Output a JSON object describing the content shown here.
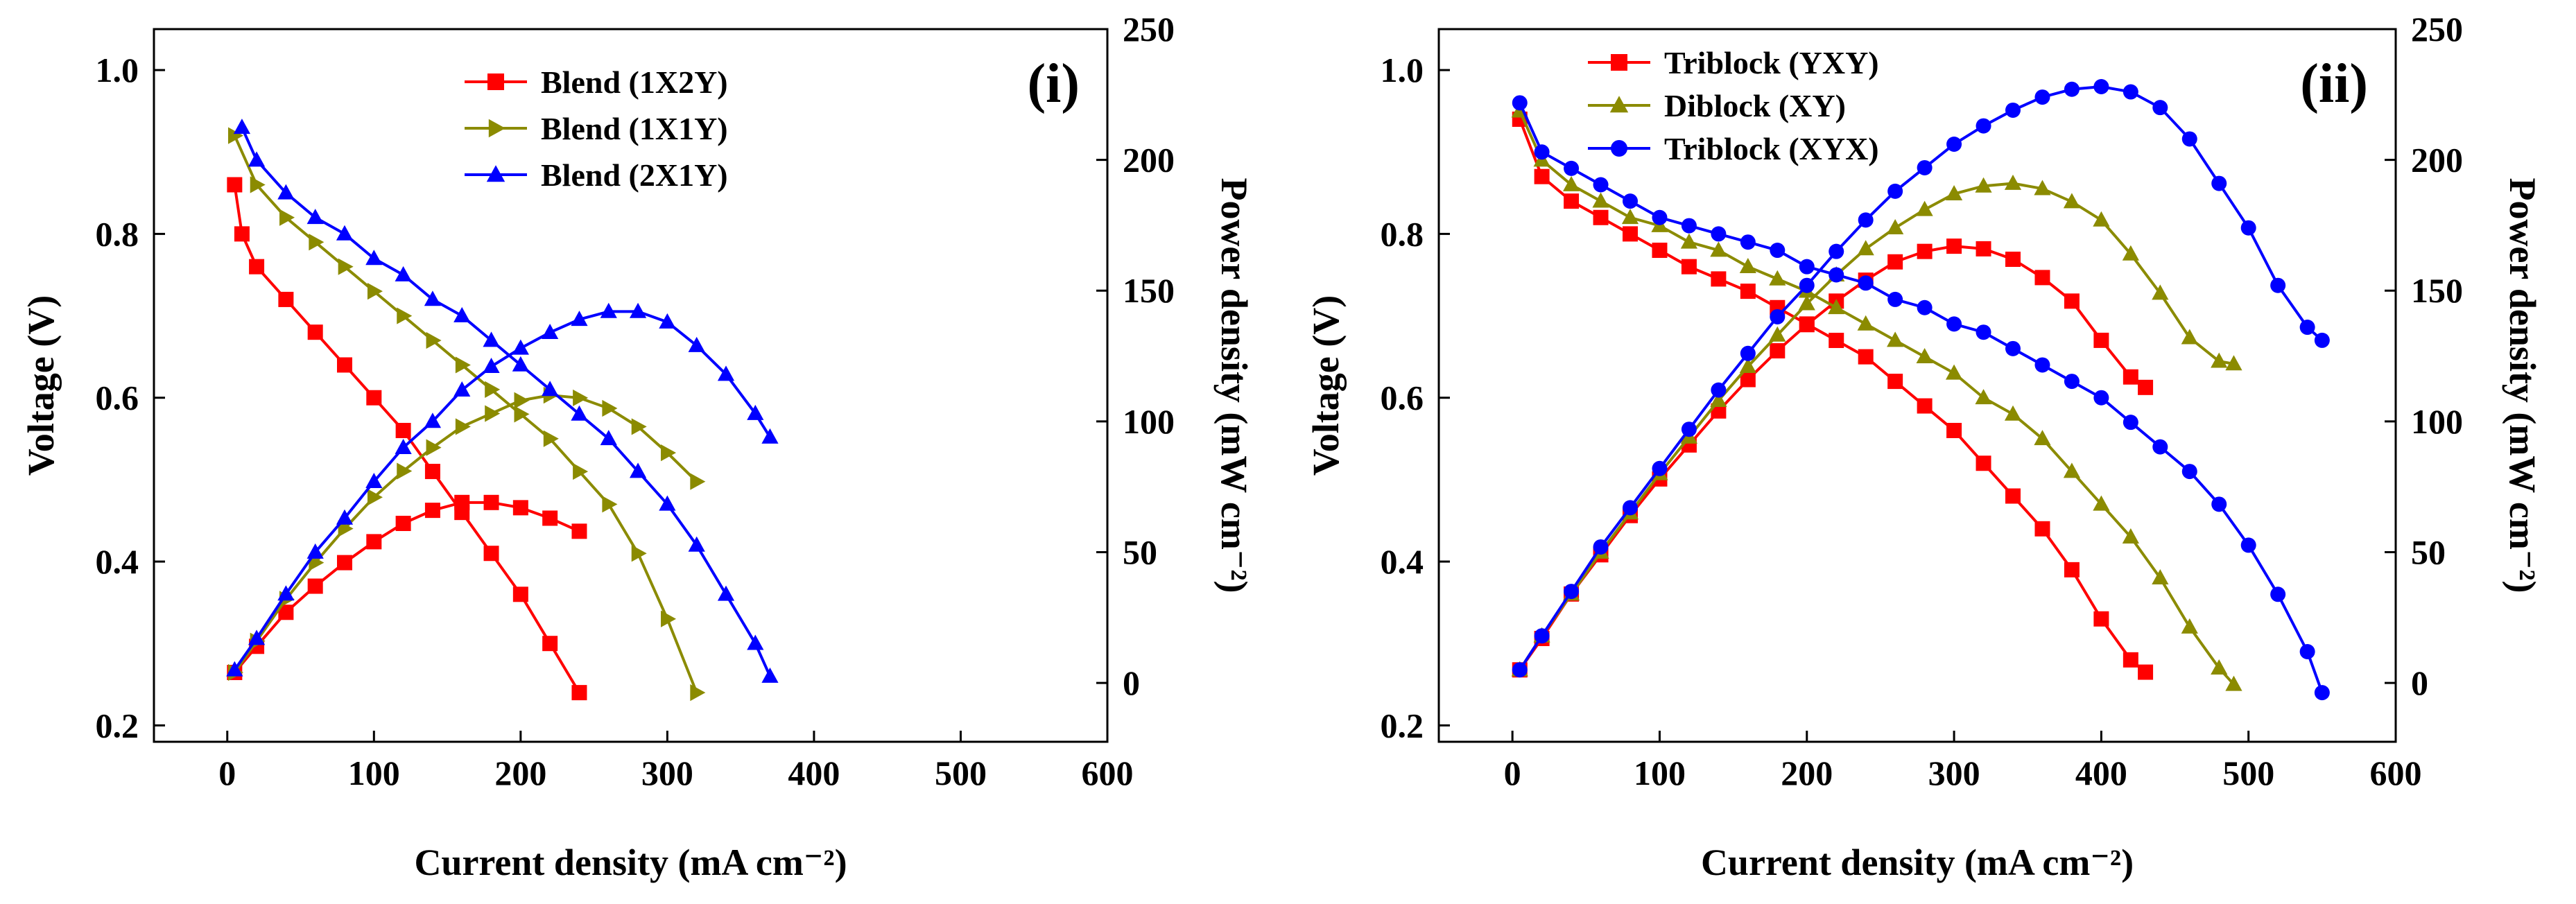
{
  "chart_data": [
    {
      "type": "line",
      "panel": "left",
      "panel_label": "(i)",
      "xlabel": "Current density (mA cm⁻²)",
      "ylabel_left": "Voltage (V)",
      "ylabel_right": "Power density (mW cm⁻²)",
      "xlim": [
        -50,
        600
      ],
      "ylim_left": [
        0.18,
        1.05
      ],
      "ylim_right": [
        -22.5,
        250
      ],
      "xticks": [
        0,
        100,
        200,
        300,
        400,
        500,
        600
      ],
      "yticks_left": [
        0.2,
        0.4,
        0.6,
        0.8,
        1.0
      ],
      "yticks_right": [
        0,
        50,
        100,
        150,
        200,
        250
      ],
      "xtick_labels": [
        "0",
        "100",
        "200",
        "300",
        "400",
        "500",
        "600"
      ],
      "ytick_labels_left": [
        "0.2",
        "0.4",
        "0.6",
        "0.8",
        "1.0"
      ],
      "ytick_labels_right": [
        "0",
        "50",
        "100",
        "150",
        "200",
        "250"
      ],
      "legend_placement": "top-center",
      "series": [
        {
          "name": "Blend (1X2Y)",
          "color": "#ff0000",
          "marker": "square",
          "voltage": {
            "x": [
              5,
              10,
              20,
              40,
              60,
              80,
              100,
              120,
              140,
              160,
              180,
              200,
              220,
              240
            ],
            "y": [
              0.86,
              0.8,
              0.76,
              0.72,
              0.68,
              0.64,
              0.6,
              0.56,
              0.51,
              0.46,
              0.41,
              0.36,
              0.3,
              0.24
            ]
          },
          "power": {
            "x": [
              5,
              20,
              40,
              60,
              80,
              100,
              120,
              140,
              160,
              180,
              200,
              220,
              240
            ],
            "y": [
              4,
              14,
              27,
              37,
              46,
              54,
              61,
              66,
              69,
              69,
              67,
              63,
              58
            ]
          }
        },
        {
          "name": "Blend (1X1Y)",
          "color": "#8b8b00",
          "marker": "triangle-right",
          "voltage": {
            "x": [
              5,
              20,
              40,
              60,
              80,
              100,
              120,
              140,
              160,
              180,
              200,
              220,
              240,
              260,
              280,
              300,
              320
            ],
            "y": [
              0.92,
              0.86,
              0.82,
              0.79,
              0.76,
              0.73,
              0.7,
              0.67,
              0.64,
              0.61,
              0.58,
              0.55,
              0.51,
              0.47,
              0.41,
              0.33,
              0.24
            ]
          },
          "power": {
            "x": [
              5,
              20,
              40,
              60,
              80,
              100,
              120,
              140,
              160,
              180,
              200,
              220,
              240,
              260,
              280,
              300,
              320
            ],
            "y": [
              4,
              16,
              32,
              46,
              59,
              71,
              81,
              90,
              98,
              103,
              108,
              110,
              109,
              105,
              98,
              88,
              77
            ]
          }
        },
        {
          "name": "Blend (2X1Y)",
          "color": "#0000ff",
          "marker": "triangle-up",
          "voltage": {
            "x": [
              10,
              20,
              40,
              60,
              80,
              100,
              120,
              140,
              160,
              180,
              200,
              220,
              240,
              260,
              280,
              300,
              320,
              340,
              360,
              370
            ],
            "y": [
              0.93,
              0.89,
              0.85,
              0.82,
              0.8,
              0.77,
              0.75,
              0.72,
              0.7,
              0.67,
              0.64,
              0.61,
              0.58,
              0.55,
              0.51,
              0.47,
              0.42,
              0.36,
              0.3,
              0.26
            ]
          },
          "power": {
            "x": [
              5,
              20,
              40,
              60,
              80,
              100,
              120,
              140,
              160,
              180,
              200,
              220,
              240,
              260,
              280,
              300,
              320,
              340,
              360,
              370
            ],
            "y": [
              5,
              17,
              34,
              50,
              63,
              77,
              90,
              100,
              112,
              121,
              128,
              134,
              139,
              142,
              142,
              138,
              129,
              118,
              103,
              94
            ]
          }
        }
      ]
    },
    {
      "type": "line",
      "panel": "right",
      "panel_label": "(ii)",
      "xlabel": "Current density (mA cm⁻²)",
      "ylabel_left": "Voltage (V)",
      "ylabel_right": "Power density (mW cm⁻²)",
      "xlim": [
        -50,
        600
      ],
      "ylim_left": [
        0.18,
        1.05
      ],
      "ylim_right": [
        -22.5,
        250
      ],
      "xticks": [
        0,
        100,
        200,
        300,
        400,
        500,
        600
      ],
      "yticks_left": [
        0.2,
        0.4,
        0.6,
        0.8,
        1.0
      ],
      "yticks_right": [
        0,
        50,
        100,
        150,
        200,
        250
      ],
      "xtick_labels": [
        "0",
        "100",
        "200",
        "300",
        "400",
        "500",
        "600"
      ],
      "ytick_labels_left": [
        "0.2",
        "0.4",
        "0.6",
        "0.8",
        "1.0"
      ],
      "ytick_labels_right": [
        "0",
        "50",
        "100",
        "150",
        "200",
        "250"
      ],
      "legend_placement": "top-left",
      "series": [
        {
          "name": "Triblock (YXY)",
          "color": "#ff0000",
          "marker": "square",
          "voltage": {
            "x": [
              5,
              20,
              40,
              60,
              80,
              100,
              120,
              140,
              160,
              180,
              200,
              220,
              240,
              260,
              280,
              300,
              320,
              340,
              360,
              380,
              400,
              420,
              430
            ],
            "y": [
              0.94,
              0.87,
              0.84,
              0.82,
              0.8,
              0.78,
              0.76,
              0.745,
              0.73,
              0.71,
              0.69,
              0.67,
              0.65,
              0.62,
              0.59,
              0.56,
              0.52,
              0.48,
              0.44,
              0.39,
              0.33,
              0.28,
              0.265
            ]
          },
          "power": {
            "x": [
              5,
              20,
              40,
              60,
              80,
              100,
              120,
              140,
              160,
              180,
              200,
              220,
              240,
              260,
              280,
              300,
              320,
              340,
              360,
              380,
              400,
              420,
              430
            ],
            "y": [
              5,
              17,
              34,
              49,
              64,
              78,
              91,
              104,
              116,
              127,
              137,
              146,
              154,
              161,
              165,
              167,
              166,
              162,
              155,
              146,
              131,
              117,
              113
            ]
          }
        },
        {
          "name": "Diblock (XY)",
          "color": "#8b8b00",
          "marker": "triangle-up",
          "voltage": {
            "x": [
              5,
              20,
              40,
              60,
              80,
              100,
              120,
              140,
              160,
              180,
              200,
              220,
              240,
              260,
              280,
              300,
              320,
              340,
              360,
              380,
              400,
              420,
              440,
              460,
              480,
              490
            ],
            "y": [
              0.95,
              0.89,
              0.86,
              0.84,
              0.82,
              0.81,
              0.79,
              0.78,
              0.76,
              0.745,
              0.73,
              0.71,
              0.69,
              0.67,
              0.65,
              0.63,
              0.6,
              0.58,
              0.55,
              0.51,
              0.47,
              0.43,
              0.38,
              0.32,
              0.27,
              0.25
            ]
          },
          "power": {
            "x": [
              5,
              20,
              40,
              60,
              80,
              100,
              120,
              140,
              160,
              180,
              200,
              220,
              240,
              260,
              280,
              300,
              320,
              340,
              360,
              380,
              400,
              420,
              440,
              460,
              480,
              490
            ],
            "y": [
              5,
              18,
              34,
              50,
              65,
              80,
              94,
              108,
              121,
              133,
              145,
              156,
              166,
              174,
              181,
              187,
              190,
              191,
              189,
              184,
              177,
              164,
              149,
              132,
              123,
              122
            ]
          }
        },
        {
          "name": "Triblock (XYX)",
          "color": "#0000ff",
          "marker": "circle",
          "voltage": {
            "x": [
              5,
              20,
              40,
              60,
              80,
              100,
              120,
              140,
              160,
              180,
              200,
              220,
              240,
              260,
              280,
              300,
              320,
              340,
              360,
              380,
              400,
              420,
              440,
              460,
              480,
              500,
              520,
              540,
              550
            ],
            "y": [
              0.96,
              0.9,
              0.88,
              0.86,
              0.84,
              0.82,
              0.81,
              0.8,
              0.79,
              0.78,
              0.76,
              0.75,
              0.74,
              0.72,
              0.71,
              0.69,
              0.68,
              0.66,
              0.64,
              0.62,
              0.6,
              0.57,
              0.54,
              0.51,
              0.47,
              0.42,
              0.36,
              0.29,
              0.24
            ]
          },
          "power": {
            "x": [
              5,
              20,
              40,
              60,
              80,
              100,
              120,
              140,
              160,
              180,
              200,
              220,
              240,
              260,
              280,
              300,
              320,
              340,
              360,
              380,
              400,
              420,
              440,
              460,
              480,
              500,
              520,
              540,
              550
            ],
            "y": [
              5,
              18,
              35,
              52,
              67,
              82,
              97,
              112,
              126,
              140,
              152,
              165,
              177,
              188,
              197,
              206,
              213,
              219,
              224,
              227,
              228,
              226,
              220,
              208,
              191,
              174,
              152,
              136,
              131
            ]
          }
        }
      ]
    }
  ]
}
